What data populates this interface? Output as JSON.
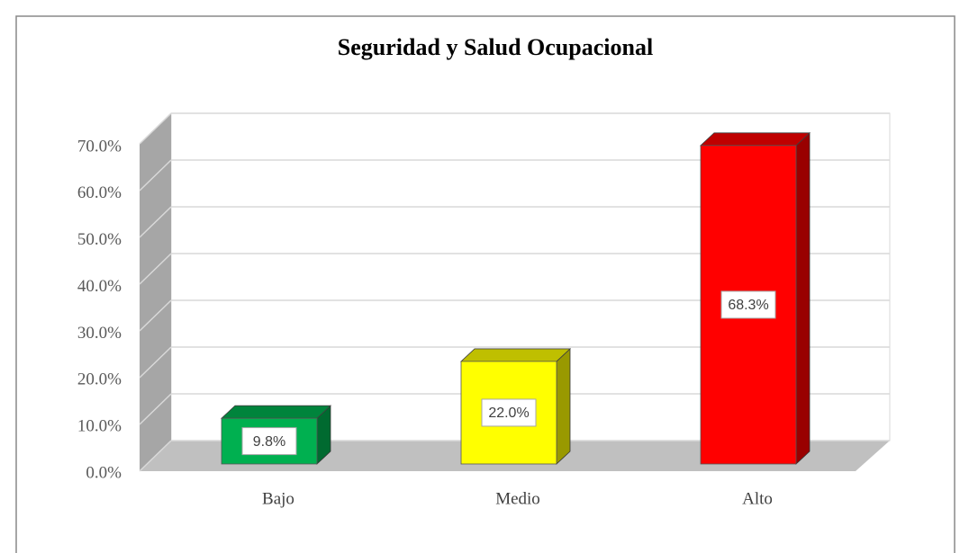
{
  "chart_data": {
    "type": "bar3d",
    "title": "Seguridad y Salud Ocupacional",
    "categories": [
      "Bajo",
      "Medio",
      "Alto"
    ],
    "values": [
      9.8,
      22.0,
      68.3
    ],
    "value_labels": [
      "9.8%",
      "22.0%",
      "68.3%"
    ],
    "colors": [
      "#00b050",
      "#ffff00",
      "#ff0000"
    ],
    "ylim": [
      0,
      70
    ],
    "yticks": [
      {
        "value": 0,
        "label": "0.0%"
      },
      {
        "value": 10,
        "label": "10.0%"
      },
      {
        "value": 20,
        "label": "20.0%"
      },
      {
        "value": 30,
        "label": "30.0%"
      },
      {
        "value": 40,
        "label": "40.0%"
      },
      {
        "value": 50,
        "label": "50.0%"
      },
      {
        "value": 60,
        "label": "60.0%"
      },
      {
        "value": 70,
        "label": "70.0%"
      }
    ],
    "grid": true
  }
}
